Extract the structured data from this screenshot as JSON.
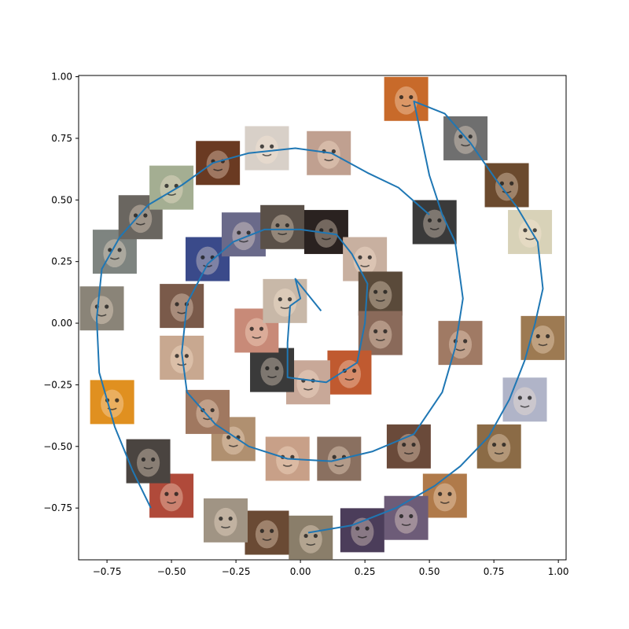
{
  "chart_data": {
    "type": "line",
    "title": "",
    "xlabel": "",
    "ylabel": "",
    "xlim": [
      -0.86,
      1.03
    ],
    "ylim": [
      -0.96,
      1.005
    ],
    "x_ticks": [
      -0.75,
      -0.5,
      -0.25,
      0.0,
      0.25,
      0.5,
      0.75,
      1.0
    ],
    "x_tick_labels": [
      "−0.75",
      "−0.50",
      "−0.25",
      "0.00",
      "0.25",
      "0.50",
      "0.75",
      "1.00"
    ],
    "y_ticks": [
      -0.75,
      -0.5,
      -0.25,
      0.0,
      0.25,
      0.5,
      0.75,
      1.0
    ],
    "y_tick_labels": [
      "−0.75",
      "−0.50",
      "−0.25",
      "0.00",
      "0.25",
      "0.50",
      "0.75",
      "1.00"
    ],
    "grid": false,
    "line_color": "#1f77b4",
    "line_points": [
      [
        0.03,
        -0.85
      ],
      [
        0.2,
        -0.82
      ],
      [
        0.37,
        -0.75
      ],
      [
        0.52,
        -0.66
      ],
      [
        0.62,
        -0.58
      ],
      [
        0.73,
        -0.46
      ],
      [
        0.81,
        -0.31
      ],
      [
        0.87,
        -0.15
      ],
      [
        0.91,
        0.0
      ],
      [
        0.94,
        0.14
      ],
      [
        0.92,
        0.33
      ],
      [
        0.84,
        0.47
      ],
      [
        0.76,
        0.58
      ],
      [
        0.66,
        0.73
      ],
      [
        0.56,
        0.85
      ],
      [
        0.44,
        0.9
      ],
      [
        0.5,
        0.6
      ],
      [
        0.55,
        0.44
      ],
      [
        0.6,
        0.33
      ],
      [
        0.63,
        0.1
      ],
      [
        0.6,
        -0.1
      ],
      [
        0.55,
        -0.28
      ],
      [
        0.44,
        -0.45
      ],
      [
        0.28,
        -0.52
      ],
      [
        0.12,
        -0.56
      ],
      [
        -0.05,
        -0.55
      ],
      [
        -0.2,
        -0.5
      ],
      [
        -0.33,
        -0.41
      ],
      [
        -0.44,
        -0.28
      ],
      [
        -0.46,
        -0.12
      ],
      [
        -0.44,
        0.08
      ],
      [
        -0.36,
        0.24
      ],
      [
        -0.26,
        0.33
      ],
      [
        -0.14,
        0.38
      ],
      [
        0.0,
        0.38
      ],
      [
        0.14,
        0.36
      ],
      [
        0.2,
        0.28
      ],
      [
        0.26,
        0.16
      ],
      [
        0.25,
        0.0
      ],
      [
        0.22,
        -0.16
      ],
      [
        0.1,
        -0.24
      ],
      [
        -0.05,
        -0.22
      ],
      [
        -0.05,
        -0.08
      ],
      [
        -0.04,
        0.07
      ],
      [
        0.0,
        0.1
      ],
      [
        -0.02,
        0.18
      ],
      [
        0.08,
        0.05
      ]
    ],
    "outer_points": [
      [
        -0.58,
        -0.75
      ],
      [
        -0.65,
        -0.6
      ],
      [
        -0.72,
        -0.42
      ],
      [
        -0.78,
        -0.2
      ],
      [
        -0.79,
        0.02
      ],
      [
        -0.77,
        0.22
      ],
      [
        -0.7,
        0.35
      ],
      [
        -0.59,
        0.48
      ],
      [
        -0.46,
        0.56
      ],
      [
        -0.34,
        0.65
      ],
      [
        -0.2,
        0.69
      ],
      [
        -0.02,
        0.71
      ],
      [
        0.12,
        0.69
      ],
      [
        0.26,
        0.61
      ],
      [
        0.38,
        0.55
      ],
      [
        0.5,
        0.44
      ]
    ],
    "thumbnails": [
      {
        "x": 0.41,
        "y": 0.91,
        "icon": "cookie-googly-eyes-face",
        "color": "#c86a2a"
      },
      {
        "x": 0.64,
        "y": 0.75,
        "icon": "metal-parts-face",
        "color": "#6f6f6f"
      },
      {
        "x": 0.8,
        "y": 0.56,
        "icon": "coffee-cup-face",
        "color": "#6b4a2e"
      },
      {
        "x": 0.89,
        "y": 0.37,
        "icon": "pale-doll-face",
        "color": "#d8d2b8"
      },
      {
        "x": 0.94,
        "y": -0.06,
        "icon": "cardboard-box-face",
        "color": "#9d7a52"
      },
      {
        "x": 0.87,
        "y": -0.31,
        "icon": "panda-bag-face",
        "color": "#b0b4c8"
      },
      {
        "x": 0.77,
        "y": -0.5,
        "icon": "guitar-face",
        "color": "#8b6b46"
      },
      {
        "x": 0.56,
        "y": -0.7,
        "icon": "latte-art-face",
        "color": "#b07a4a"
      },
      {
        "x": 0.41,
        "y": -0.79,
        "icon": "purple-mask-face",
        "color": "#6d5c78"
      },
      {
        "x": 0.24,
        "y": -0.84,
        "icon": "eggplant-face",
        "color": "#4b3d5a"
      },
      {
        "x": 0.04,
        "y": -0.87,
        "icon": "metal-bin-face",
        "color": "#8a7e6a"
      },
      {
        "x": -0.13,
        "y": -0.85,
        "icon": "carved-wood-face",
        "color": "#6a4a34"
      },
      {
        "x": -0.29,
        "y": -0.8,
        "icon": "stone-face",
        "color": "#a09484"
      },
      {
        "x": -0.5,
        "y": -0.7,
        "icon": "red-machine-face",
        "color": "#b04a3a"
      },
      {
        "x": -0.59,
        "y": -0.56,
        "icon": "gauge-face",
        "color": "#4a4440"
      },
      {
        "x": -0.73,
        "y": -0.32,
        "icon": "orange-box-face",
        "color": "#e09020"
      },
      {
        "x": -0.77,
        "y": 0.06,
        "icon": "pipe-face",
        "color": "#8a8478"
      },
      {
        "x": -0.72,
        "y": 0.29,
        "icon": "fan-face",
        "color": "#7e8480"
      },
      {
        "x": -0.62,
        "y": 0.43,
        "icon": "car-face",
        "color": "#6a6660"
      },
      {
        "x": -0.5,
        "y": 0.55,
        "icon": "green-mask-face",
        "color": "#a4ae92"
      },
      {
        "x": -0.32,
        "y": 0.65,
        "icon": "leather-bag-face",
        "color": "#6a3a22"
      },
      {
        "x": -0.13,
        "y": 0.71,
        "icon": "ball-face",
        "color": "#d8d0c8"
      },
      {
        "x": 0.11,
        "y": 0.69,
        "icon": "cartoon-head-face",
        "color": "#c0a090"
      },
      {
        "x": 0.52,
        "y": 0.41,
        "icon": "robot-face",
        "color": "#3a3a3a"
      },
      {
        "x": 0.62,
        "y": -0.08,
        "icon": "person-face",
        "color": "#a07a64"
      },
      {
        "x": 0.42,
        "y": -0.5,
        "icon": "person-face",
        "color": "#6a4a3a"
      },
      {
        "x": 0.15,
        "y": -0.55,
        "icon": "person-face",
        "color": "#8a7060"
      },
      {
        "x": -0.05,
        "y": -0.55,
        "icon": "person-face",
        "color": "#c8a088"
      },
      {
        "x": -0.26,
        "y": -0.47,
        "icon": "person-face",
        "color": "#b09070"
      },
      {
        "x": -0.36,
        "y": -0.36,
        "icon": "person-face",
        "color": "#a07860"
      },
      {
        "x": -0.46,
        "y": -0.14,
        "icon": "person-face",
        "color": "#c8a890"
      },
      {
        "x": -0.46,
        "y": 0.07,
        "icon": "person-face",
        "color": "#7a5a4a"
      },
      {
        "x": -0.36,
        "y": 0.26,
        "icon": "person-face",
        "color": "#3a4a8a"
      },
      {
        "x": -0.22,
        "y": 0.36,
        "icon": "person-face",
        "color": "#6a6a8a"
      },
      {
        "x": -0.07,
        "y": 0.39,
        "icon": "person-face",
        "color": "#5a5048"
      },
      {
        "x": 0.1,
        "y": 0.37,
        "icon": "person-face",
        "color": "#2a2220"
      },
      {
        "x": 0.25,
        "y": 0.26,
        "icon": "person-face",
        "color": "#c8b0a0"
      },
      {
        "x": 0.31,
        "y": 0.12,
        "icon": "person-face",
        "color": "#5a4a3a"
      },
      {
        "x": 0.31,
        "y": -0.04,
        "icon": "person-face",
        "color": "#8a6a5a"
      },
      {
        "x": 0.19,
        "y": -0.2,
        "icon": "person-face",
        "color": "#c05a30"
      },
      {
        "x": 0.03,
        "y": -0.24,
        "icon": "person-face",
        "color": "#c8a898"
      },
      {
        "x": -0.11,
        "y": -0.19,
        "icon": "person-face",
        "color": "#3a3a3a"
      },
      {
        "x": -0.17,
        "y": -0.03,
        "icon": "person-face",
        "color": "#c88a78"
      },
      {
        "x": -0.06,
        "y": 0.09,
        "icon": "person-face",
        "color": "#c8b8a8"
      }
    ]
  }
}
